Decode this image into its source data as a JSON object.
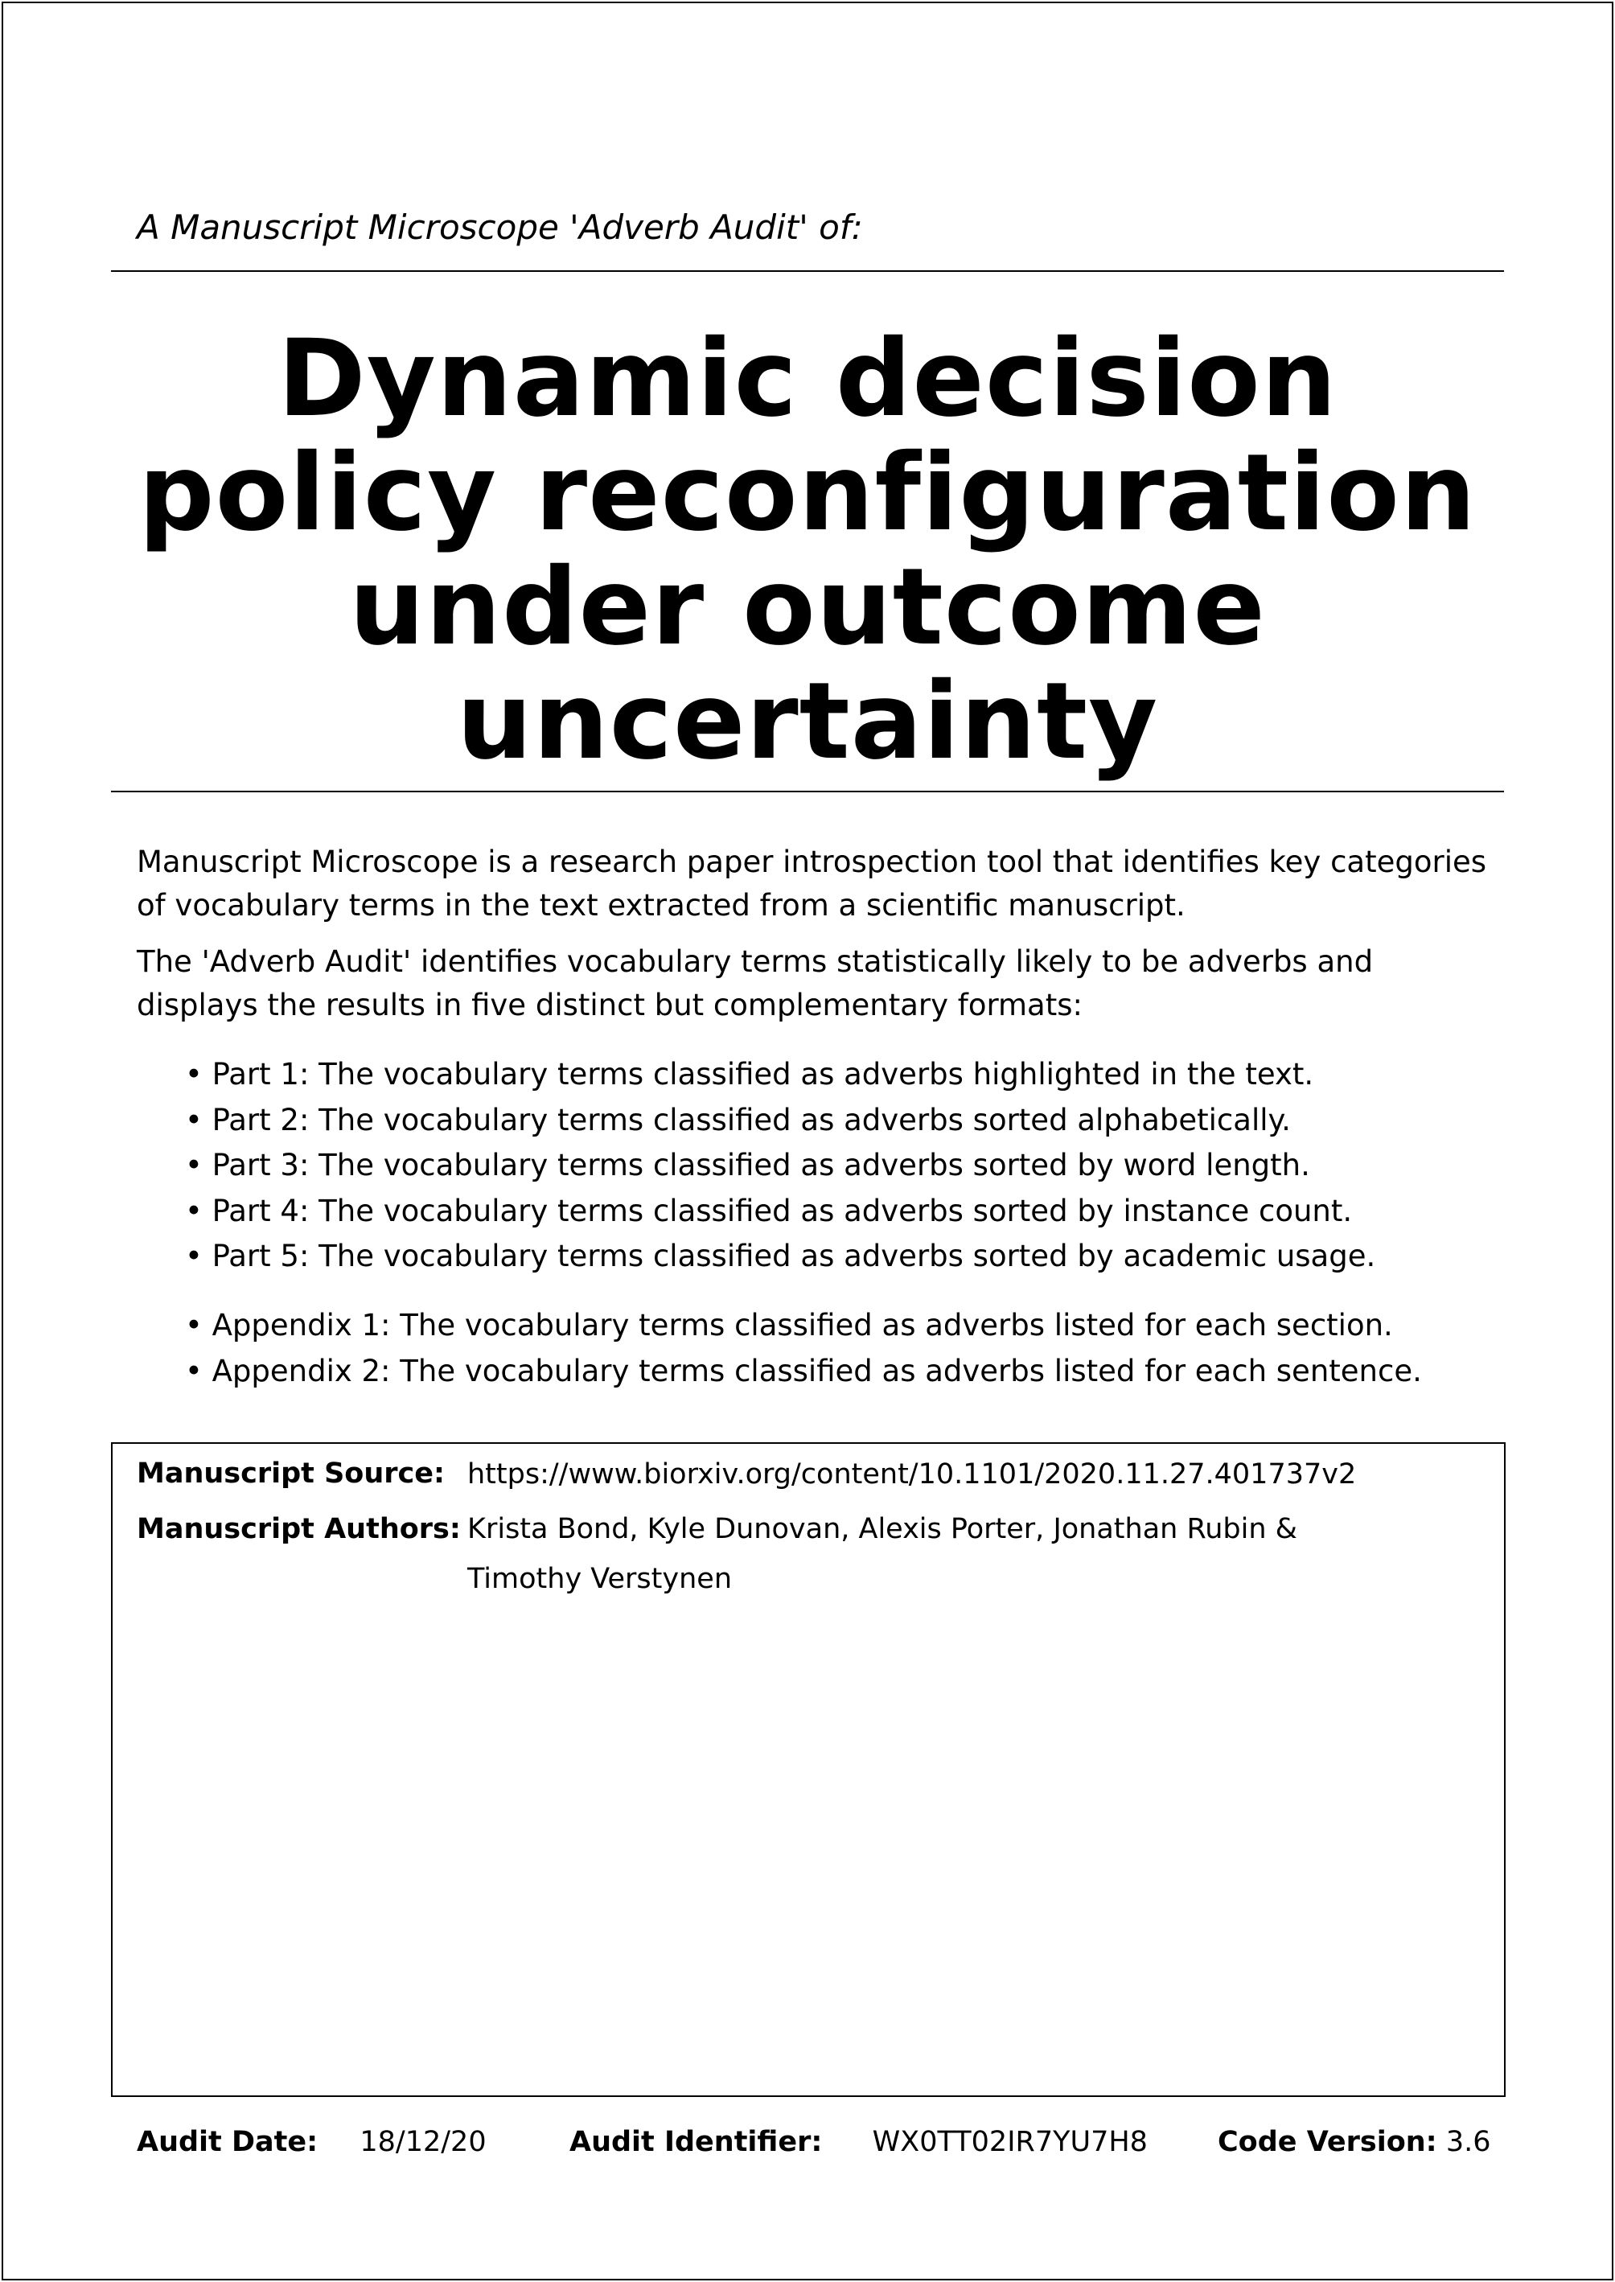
{
  "header": {
    "subtitle": "A Manuscript Microscope 'Adverb Audit' of:",
    "title_lines": [
      "Dynamic decision",
      "policy reconfiguration",
      "under outcome",
      "uncertainty"
    ]
  },
  "intro": {
    "paragraphs": [
      "Manuscript Microscope is a research paper introspection tool that identifies key categories of vocabulary terms in the text extracted from a scientific manuscript.",
      "The 'Adverb Audit' identifies vocabulary terms statistically likely to be adverbs and displays the results in five distinct but complementary formats:"
    ],
    "parts": [
      "Part 1: The vocabulary terms classified as adverbs highlighted in the text.",
      "Part 2: The vocabulary terms classified as adverbs sorted alphabetically.",
      "Part 3: The vocabulary terms classified as adverbs sorted by word length.",
      "Part 4: The vocabulary terms classified as adverbs sorted by instance count.",
      "Part 5: The vocabulary terms classified as adverbs sorted by academic usage."
    ],
    "appendices": [
      "Appendix 1: The vocabulary terms classified as adverbs listed for each section.",
      "Appendix 2: The vocabulary terms classified as adverbs listed for each sentence."
    ]
  },
  "manuscript": {
    "source_label": "Manuscript Source:",
    "source_value": "https://www.biorxiv.org/content/10.1101/2020.11.27.401737v2",
    "authors_label": "Manuscript Authors:",
    "authors_value": "Krista Bond, Kyle Dunovan, Alexis Porter, Jonathan Rubin & Timothy Verstynen"
  },
  "footer": {
    "audit_date_label": "Audit Date:",
    "audit_date_value": "18/12/20",
    "audit_id_label": "Audit Identifier:",
    "audit_id_value": "WX0TT02IR7YU7H8",
    "code_version_label": "Code Version:",
    "code_version_value": "3.6"
  }
}
